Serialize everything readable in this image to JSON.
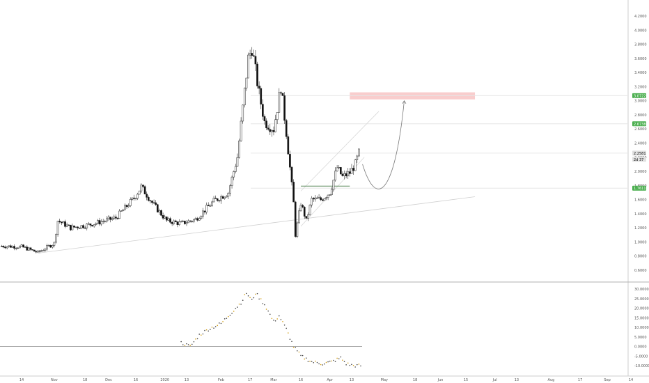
{
  "chart_data": {
    "type": "candlestick",
    "main_panel": {
      "y_ticks": [
        "4.2000",
        "4.0000",
        "3.8000",
        "3.6000",
        "3.4000",
        "3.2000",
        "3.0000",
        "2.8000",
        "2.6000",
        "2.4000",
        "2.2000",
        "2.0000",
        "1.8000",
        "1.6000",
        "1.4000",
        "1.2000",
        "1.0000",
        "0.8000",
        "0.6000"
      ],
      "ylim": [
        0.45,
        4.35
      ],
      "price_labels": [
        {
          "text": "3.0722",
          "value": 3.0722,
          "color": "#4caf50"
        },
        {
          "text": "2.6738",
          "value": 2.6738,
          "color": "#4caf50"
        },
        {
          "text": "2.2581",
          "value": 2.2581,
          "color": "#e0e0e0"
        },
        {
          "text": "2d 37",
          "value": 2.17,
          "color": "#e0e0e0"
        },
        {
          "text": "1.7611",
          "value": 1.7611,
          "color": "#4caf50"
        }
      ],
      "series": [
        {
          "date": "2019-10-03",
          "close": 0.94
        },
        {
          "date": "2019-10-14",
          "close": 0.93
        },
        {
          "date": "2019-10-23",
          "close": 0.85
        },
        {
          "date": "2019-11-01",
          "close": 0.98
        },
        {
          "date": "2019-11-03",
          "close": 1.3
        },
        {
          "date": "2019-11-10",
          "close": 1.2
        },
        {
          "date": "2019-11-20",
          "close": 1.24
        },
        {
          "date": "2019-12-05",
          "close": 1.34
        },
        {
          "date": "2019-12-15",
          "close": 1.62
        },
        {
          "date": "2019-12-19",
          "close": 1.78
        },
        {
          "date": "2019-12-26",
          "close": 1.52
        },
        {
          "date": "2020-01-02",
          "close": 1.3
        },
        {
          "date": "2020-01-10",
          "close": 1.26
        },
        {
          "date": "2020-01-18",
          "close": 1.32
        },
        {
          "date": "2020-01-28",
          "close": 1.58
        },
        {
          "date": "2020-02-05",
          "close": 1.7
        },
        {
          "date": "2020-02-10",
          "close": 2.2
        },
        {
          "date": "2020-02-13",
          "close": 2.9
        },
        {
          "date": "2020-02-16",
          "close": 3.6
        },
        {
          "date": "2020-02-18",
          "close": 3.75
        },
        {
          "date": "2020-02-22",
          "close": 3.1
        },
        {
          "date": "2020-02-25",
          "close": 2.7
        },
        {
          "date": "2020-03-01",
          "close": 2.6
        },
        {
          "date": "2020-03-05",
          "close": 3.2
        },
        {
          "date": "2020-03-08",
          "close": 2.55
        },
        {
          "date": "2020-03-12",
          "close": 1.55
        },
        {
          "date": "2020-03-13",
          "close": 1.1
        },
        {
          "date": "2020-03-16",
          "close": 1.55
        },
        {
          "date": "2020-03-19",
          "close": 1.3
        },
        {
          "date": "2020-03-22",
          "close": 1.6
        },
        {
          "date": "2020-03-27",
          "close": 1.6
        },
        {
          "date": "2020-04-01",
          "close": 1.7
        },
        {
          "date": "2020-04-05",
          "close": 2.05
        },
        {
          "date": "2020-04-08",
          "close": 1.92
        },
        {
          "date": "2020-04-12",
          "close": 1.98
        },
        {
          "date": "2020-04-15",
          "close": 2.1
        },
        {
          "date": "2020-04-17",
          "close": 2.26
        }
      ],
      "annotations": {
        "target_zone": {
          "date_from": "2020-04-12",
          "date_to": "2020-06-20",
          "price_from": 3.02,
          "price_to": 3.12,
          "color": "#f8c8c8"
        },
        "support_line": {
          "from": {
            "date": "2019-10-23",
            "price": 0.84
          },
          "to": {
            "date": "2020-06-20",
            "price": 1.64
          }
        },
        "channel_lower": {
          "from": {
            "date": "2020-03-16",
            "price": 1.22
          },
          "to": {
            "date": "2020-04-20",
            "price": 2.2
          }
        },
        "channel_upper": {
          "from": {
            "date": "2020-03-16",
            "price": 1.72
          },
          "to": {
            "date": "2020-04-28",
            "price": 2.85
          }
        },
        "horizontal_line": {
          "date_from": "2020-03-16",
          "date_to": "2020-04-12",
          "price": 1.79
        },
        "projection_path": [
          {
            "date": "2020-04-19",
            "price": 2.1
          },
          {
            "date": "2020-04-27",
            "price": 1.83
          },
          {
            "date": "2020-05-07",
            "price": 2.1
          },
          {
            "date": "2020-05-12",
            "price": 3.0
          }
        ]
      }
    },
    "indicator_panel": {
      "y_ticks": [
        "30.0000",
        "25.0000",
        "20.0000",
        "15.0000",
        "10.0000",
        "5.0000",
        "0.0000",
        "-5.0000",
        "-10.0000"
      ],
      "ylim": [
        -14,
        33
      ],
      "zero_line": 0,
      "series": [
        {
          "date": "2020-01-10",
          "value": 2
        },
        {
          "date": "2020-01-15",
          "value": 0
        },
        {
          "date": "2020-01-20",
          "value": 6
        },
        {
          "date": "2020-01-25",
          "value": 9
        },
        {
          "date": "2020-02-01",
          "value": 12
        },
        {
          "date": "2020-02-07",
          "value": 18
        },
        {
          "date": "2020-02-12",
          "value": 23
        },
        {
          "date": "2020-02-15",
          "value": 28
        },
        {
          "date": "2020-02-18",
          "value": 24
        },
        {
          "date": "2020-02-20",
          "value": 28
        },
        {
          "date": "2020-02-25",
          "value": 22
        },
        {
          "date": "2020-03-01",
          "value": 13
        },
        {
          "date": "2020-03-04",
          "value": 16
        },
        {
          "date": "2020-03-08",
          "value": 9
        },
        {
          "date": "2020-03-12",
          "value": 0
        },
        {
          "date": "2020-03-16",
          "value": -5
        },
        {
          "date": "2020-03-22",
          "value": -8
        },
        {
          "date": "2020-03-28",
          "value": -9
        },
        {
          "date": "2020-04-02",
          "value": -8
        },
        {
          "date": "2020-04-07",
          "value": -6
        },
        {
          "date": "2020-04-10",
          "value": -9
        },
        {
          "date": "2020-04-14",
          "value": -10
        },
        {
          "date": "2020-04-18",
          "value": -10
        }
      ]
    },
    "x_ticks": [
      {
        "label": "14",
        "date": "2019-10-14"
      },
      {
        "label": "Nov",
        "date": "2019-11-01"
      },
      {
        "label": "18",
        "date": "2019-11-18"
      },
      {
        "label": "Dec",
        "date": "2019-12-01"
      },
      {
        "label": "16",
        "date": "2019-12-16"
      },
      {
        "label": "2020",
        "date": "2020-01-01"
      },
      {
        "label": "13",
        "date": "2020-01-13"
      },
      {
        "label": "Feb",
        "date": "2020-02-01"
      },
      {
        "label": "17",
        "date": "2020-02-17"
      },
      {
        "label": "Mar",
        "date": "2020-03-01"
      },
      {
        "label": "16",
        "date": "2020-03-16"
      },
      {
        "label": "Apr",
        "date": "2020-04-01"
      },
      {
        "label": "13",
        "date": "2020-04-13"
      },
      {
        "label": "May",
        "date": "2020-05-01"
      },
      {
        "label": "18",
        "date": "2020-05-18"
      },
      {
        "label": "Jun",
        "date": "2020-06-01"
      },
      {
        "label": "15",
        "date": "2020-06-15"
      },
      {
        "label": "Jul",
        "date": "2020-07-01"
      },
      {
        "label": "13",
        "date": "2020-07-13"
      },
      {
        "label": "Aug",
        "date": "2020-08-01"
      },
      {
        "label": "17",
        "date": "2020-08-17"
      },
      {
        "label": "Sep",
        "date": "2020-09-01"
      },
      {
        "label": "14",
        "date": "2020-09-14"
      }
    ]
  }
}
